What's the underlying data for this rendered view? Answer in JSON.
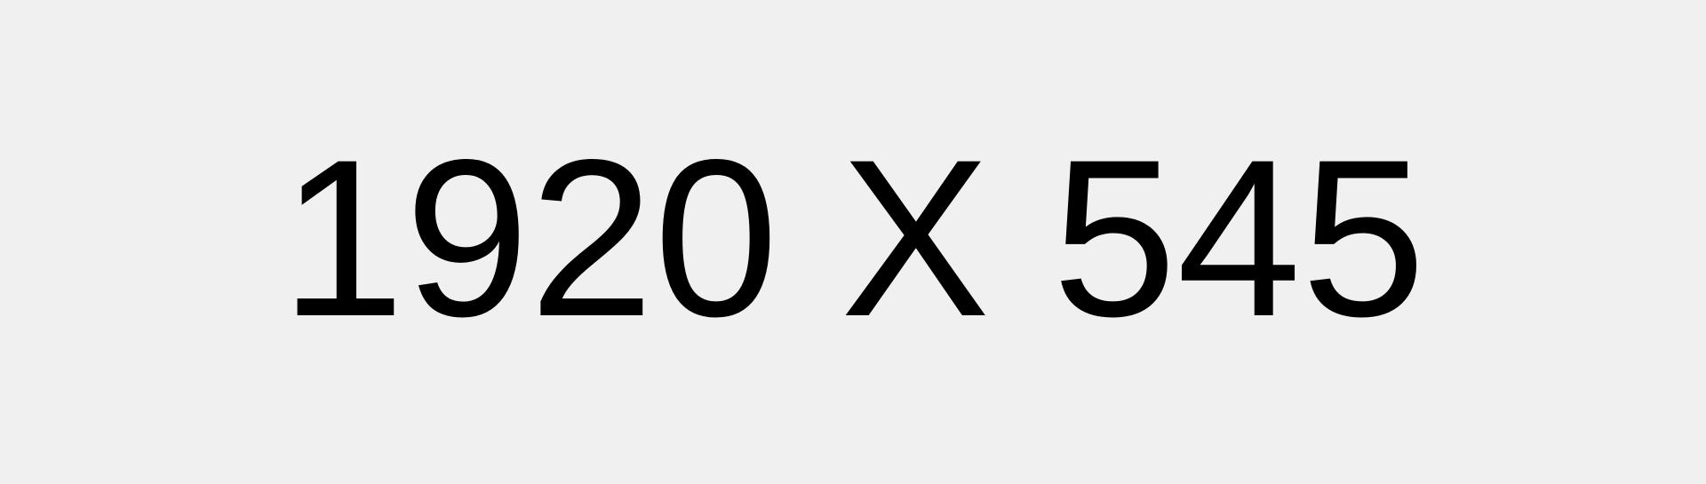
{
  "placeholder": {
    "text": "1920 X 545",
    "text_color": "#000000",
    "background_color": "#f0f0f0"
  }
}
